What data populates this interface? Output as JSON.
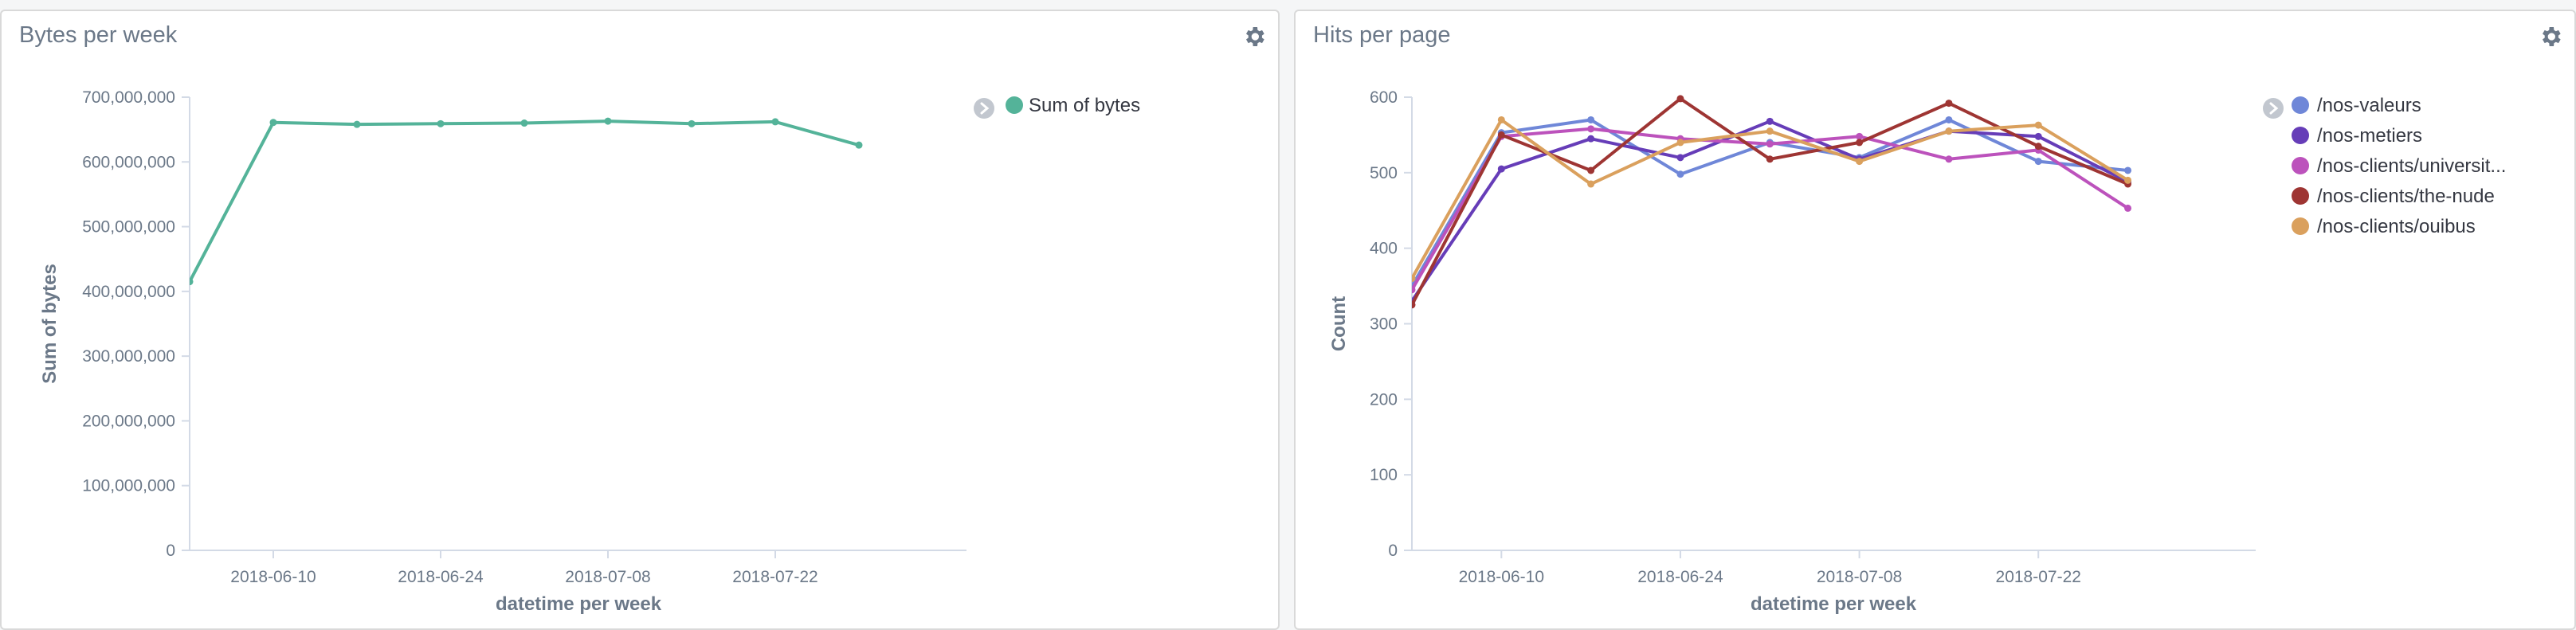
{
  "panels": [
    {
      "title": "Bytes per week",
      "settings_icon": "gear-icon"
    },
    {
      "title": "Hits per page",
      "settings_icon": "gear-icon"
    }
  ],
  "legend_toggle_icon": "chevron-right-icon",
  "chart_data": [
    {
      "type": "line",
      "title": "Bytes per week",
      "xlabel": "datetime per week",
      "ylabel": "Sum of bytes",
      "x": [
        "2018-06-03",
        "2018-06-10",
        "2018-06-17",
        "2018-06-24",
        "2018-07-01",
        "2018-07-08",
        "2018-07-15",
        "2018-07-22",
        "2018-07-29"
      ],
      "xticks": [
        "2018-06-10",
        "2018-06-24",
        "2018-07-08",
        "2018-07-22"
      ],
      "yticks": [
        "0",
        "100,000,000",
        "200,000,000",
        "300,000,000",
        "400,000,000",
        "500,000,000",
        "600,000,000",
        "700,000,000"
      ],
      "ylim": [
        0,
        700000000
      ],
      "grid": false,
      "legend": "top-right",
      "series": [
        {
          "name": "Sum of bytes",
          "color": "#54b399",
          "values": [
            415000000,
            661000000,
            658000000,
            659000000,
            660000000,
            663000000,
            659000000,
            662000000,
            626000000
          ]
        }
      ]
    },
    {
      "type": "line",
      "title": "Hits per page",
      "xlabel": "datetime per week",
      "ylabel": "Count",
      "x": [
        "2018-06-03",
        "2018-06-10",
        "2018-06-17",
        "2018-06-24",
        "2018-07-01",
        "2018-07-08",
        "2018-07-15",
        "2018-07-22",
        "2018-07-29"
      ],
      "xticks": [
        "2018-06-10",
        "2018-06-24",
        "2018-07-08",
        "2018-07-22"
      ],
      "yticks": [
        "0",
        "100",
        "200",
        "300",
        "400",
        "500",
        "600"
      ],
      "ylim": [
        0,
        600
      ],
      "grid": false,
      "legend": "top-right",
      "series": [
        {
          "name": "/nos-valeurs",
          "color": "#6f87d8",
          "values": [
            350,
            553,
            570,
            498,
            540,
            520,
            570,
            515,
            503
          ]
        },
        {
          "name": "/nos-metiers",
          "color": "#663db8",
          "values": [
            330,
            505,
            545,
            520,
            568,
            518,
            555,
            548,
            488
          ]
        },
        {
          "name": "/nos-clients/universit...",
          "color": "#bc52bc",
          "values": [
            345,
            548,
            558,
            545,
            538,
            548,
            518,
            530,
            453
          ]
        },
        {
          "name": "/nos-clients/the-nude",
          "color": "#9e3533",
          "values": [
            325,
            550,
            503,
            598,
            518,
            540,
            592,
            535,
            485
          ]
        },
        {
          "name": "/nos-clients/ouibus",
          "color": "#daa05d",
          "values": [
            360,
            570,
            485,
            540,
            555,
            515,
            555,
            563,
            490
          ]
        }
      ]
    }
  ]
}
